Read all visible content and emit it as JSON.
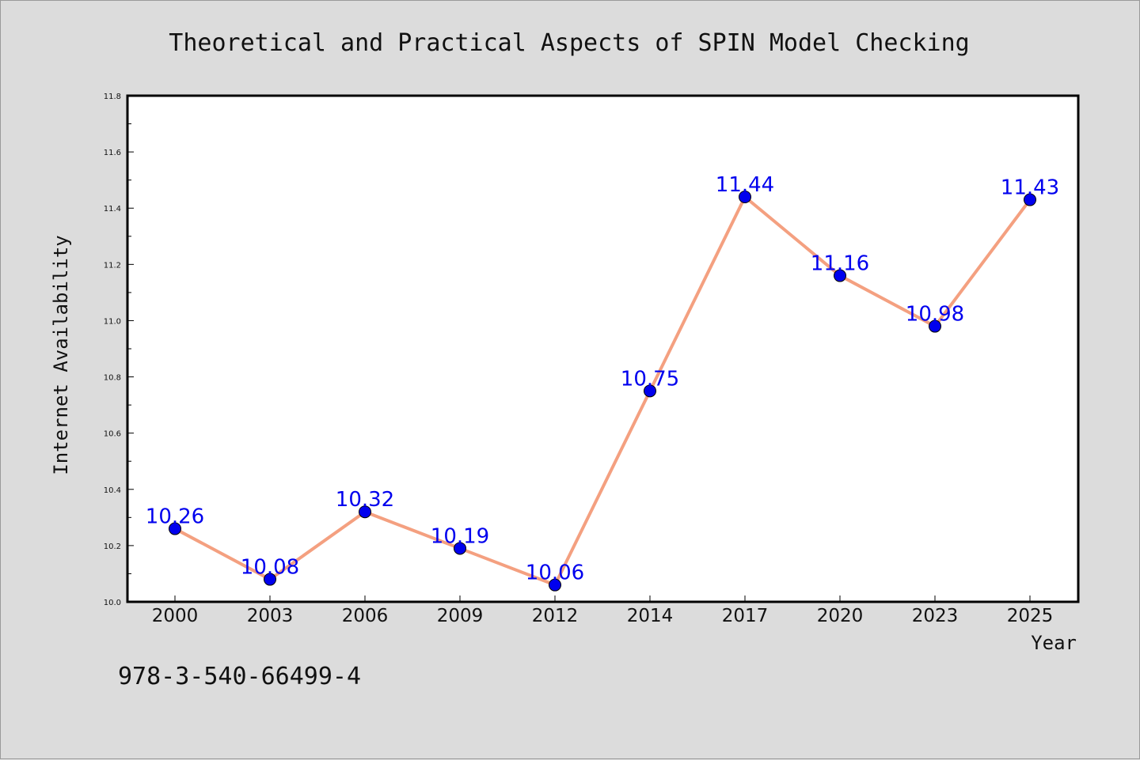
{
  "chart_data": {
    "type": "line",
    "title": "Theoretical and Practical Aspects of SPIN Model Checking",
    "xlabel": "Year",
    "ylabel": "Internet Availability",
    "categories": [
      "2000",
      "2003",
      "2006",
      "2009",
      "2012",
      "2014",
      "2017",
      "2020",
      "2023",
      "2025"
    ],
    "series": [
      {
        "values": [
          10.26,
          10.08,
          10.32,
          10.19,
          10.06,
          10.75,
          11.44,
          11.16,
          10.98,
          11.43
        ],
        "data_labels": [
          "10.26",
          "10.08",
          "10.32",
          "10.19",
          "10.06",
          "10.75",
          "11.44",
          "11.16",
          "10.98",
          "11.43"
        ],
        "line_color": "#f4a080",
        "marker_color": "#0000ee"
      }
    ],
    "ylim": [
      10.0,
      11.8
    ],
    "yticks": [
      "10.0",
      "10.2",
      "10.4",
      "10.6",
      "10.8",
      "11.0",
      "11.2",
      "11.4",
      "11.6",
      "11.8"
    ],
    "grid": false,
    "legend": "none"
  },
  "footer": {
    "isbn": "978-3-540-66499-4"
  }
}
